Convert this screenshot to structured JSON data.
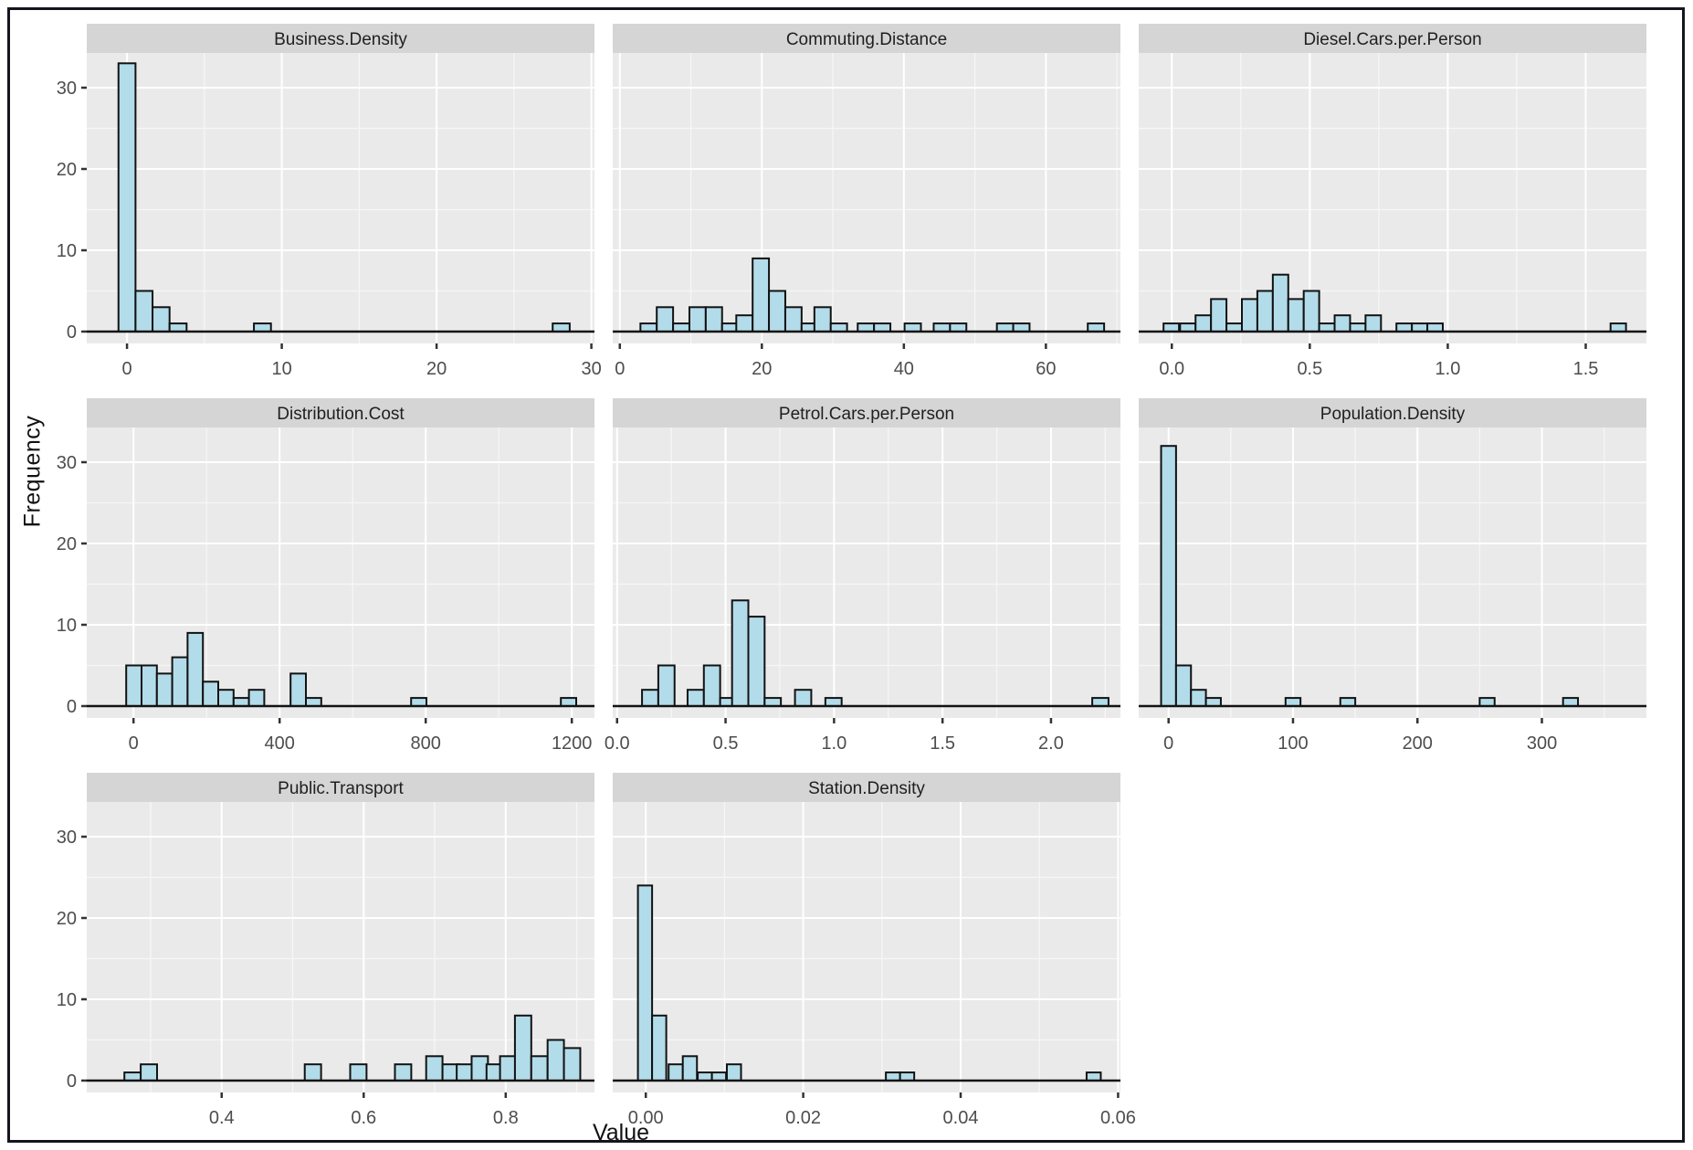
{
  "chart_data": {
    "type": "histogram-facets",
    "xlabel": "Value",
    "ylabel": "Frequency",
    "ylim": [
      0,
      34.3
    ],
    "yticks": [
      0,
      10,
      20,
      30
    ],
    "ytick_labels": [
      "0",
      "10",
      "20",
      "30"
    ],
    "yminor": [
      5,
      15,
      25
    ],
    "grid": "on",
    "colors": {
      "panel_bg": "#EAEAEA",
      "strip_bg": "#D5D5D5",
      "strip_text": "#1F1F1F",
      "grid_major": "#FFFFFF",
      "grid_minor": "#F6F6F6",
      "bar_fill": "#B3DCEA",
      "bar_stroke": "#121212",
      "axis_line": "#121212",
      "tick_mark": "#333333",
      "tick_label": "#4D4D4D",
      "axis_title": "#111111",
      "frame": "#15151F"
    },
    "panels": [
      {
        "title": "Business.Density",
        "row": 0,
        "col": 0,
        "xlim": [
          -2.6,
          30.2
        ],
        "xticks": [
          0,
          10,
          20,
          30
        ],
        "xtick_labels": [
          "0",
          "10",
          "20",
          "30"
        ],
        "xminor": [
          5,
          15,
          25
        ],
        "bin_width": 1.1,
        "bars": [
          [
            -0.55,
            33
          ],
          [
            0.55,
            5
          ],
          [
            1.65,
            3
          ],
          [
            2.75,
            1
          ],
          [
            8.2,
            1
          ],
          [
            27.5,
            1
          ]
        ]
      },
      {
        "title": "Commuting.Distance",
        "row": 0,
        "col": 1,
        "xlim": [
          -1,
          70.5
        ],
        "xticks": [
          0,
          20,
          40,
          60
        ],
        "xtick_labels": [
          "0",
          "20",
          "40",
          "60"
        ],
        "xminor": [
          10,
          30,
          50,
          70
        ],
        "bin_width": 2.3,
        "bars": [
          [
            2.9,
            1
          ],
          [
            5.2,
            3
          ],
          [
            7.5,
            1
          ],
          [
            9.8,
            3
          ],
          [
            12.1,
            3
          ],
          [
            14.4,
            1
          ],
          [
            16.4,
            2
          ],
          [
            18.7,
            9
          ],
          [
            21.0,
            5
          ],
          [
            23.3,
            3
          ],
          [
            25.6,
            1
          ],
          [
            27.4,
            3
          ],
          [
            29.7,
            1
          ],
          [
            33.5,
            1
          ],
          [
            35.8,
            1
          ],
          [
            40.1,
            1
          ],
          [
            44.2,
            1
          ],
          [
            46.5,
            1
          ],
          [
            53.1,
            1
          ],
          [
            55.4,
            1
          ],
          [
            65.9,
            1
          ]
        ]
      },
      {
        "title": "Diesel.Cars.per.Person",
        "row": 0,
        "col": 2,
        "xlim": [
          -0.12,
          1.72
        ],
        "xticks": [
          0,
          0.5,
          1.0,
          1.5
        ],
        "xtick_labels": [
          "0.0",
          "0.5",
          "1.0",
          "1.5"
        ],
        "xminor": [
          0.25,
          0.75,
          1.25
        ],
        "bin_width": 0.056,
        "bars": [
          [
            -0.03,
            1
          ],
          [
            0.03,
            1
          ],
          [
            0.086,
            2
          ],
          [
            0.142,
            4
          ],
          [
            0.198,
            1
          ],
          [
            0.254,
            4
          ],
          [
            0.31,
            5
          ],
          [
            0.366,
            7
          ],
          [
            0.422,
            4
          ],
          [
            0.478,
            5
          ],
          [
            0.534,
            1
          ],
          [
            0.59,
            2
          ],
          [
            0.646,
            1
          ],
          [
            0.702,
            2
          ],
          [
            0.814,
            1
          ],
          [
            0.87,
            1
          ],
          [
            0.926,
            1
          ],
          [
            1.59,
            1
          ]
        ]
      },
      {
        "title": "Distribution.Cost",
        "row": 1,
        "col": 0,
        "xlim": [
          -128,
          1262
        ],
        "xticks": [
          0,
          400,
          800,
          1200
        ],
        "xtick_labels": [
          "0",
          "400",
          "800",
          "1200"
        ],
        "xminor": [
          200,
          600,
          1000
        ],
        "bin_width": 42,
        "bars": [
          [
            -20,
            5
          ],
          [
            22,
            5
          ],
          [
            64,
            4
          ],
          [
            106,
            6
          ],
          [
            148,
            9
          ],
          [
            190,
            3
          ],
          [
            232,
            2
          ],
          [
            274,
            1
          ],
          [
            316,
            2
          ],
          [
            430,
            4
          ],
          [
            472,
            1
          ],
          [
            760,
            1
          ],
          [
            1170,
            1
          ]
        ]
      },
      {
        "title": "Petrol.Cars.per.Person",
        "row": 1,
        "col": 1,
        "xlim": [
          -0.02,
          2.32
        ],
        "xticks": [
          0,
          0.5,
          1.0,
          1.5,
          2.0
        ],
        "xtick_labels": [
          "0.0",
          "0.5",
          "1.0",
          "1.5",
          "2.0"
        ],
        "xminor": [
          0.25,
          0.75,
          1.25,
          1.75,
          2.25
        ],
        "bin_width": 0.075,
        "bars": [
          [
            0.115,
            2
          ],
          [
            0.19,
            5
          ],
          [
            0.325,
            2
          ],
          [
            0.4,
            5
          ],
          [
            0.475,
            1
          ],
          [
            0.53,
            13
          ],
          [
            0.605,
            11
          ],
          [
            0.68,
            1
          ],
          [
            0.82,
            2
          ],
          [
            0.96,
            1
          ],
          [
            2.19,
            1
          ]
        ]
      },
      {
        "title": "Population.Density",
        "row": 1,
        "col": 2,
        "xlim": [
          -24,
          384
        ],
        "xticks": [
          0,
          100,
          200,
          300
        ],
        "xtick_labels": [
          "0",
          "100",
          "200",
          "300"
        ],
        "xminor": [
          50,
          150,
          250,
          350
        ],
        "bin_width": 12,
        "bars": [
          [
            -6,
            32
          ],
          [
            6,
            5
          ],
          [
            18,
            2
          ],
          [
            30,
            1
          ],
          [
            94,
            1
          ],
          [
            138,
            1
          ],
          [
            250,
            1
          ],
          [
            317,
            1
          ]
        ]
      },
      {
        "title": "Public.Transport",
        "row": 2,
        "col": 0,
        "xlim": [
          0.21,
          0.925
        ],
        "xticks": [
          0.4,
          0.6,
          0.8
        ],
        "xtick_labels": [
          "0.4",
          "0.6",
          "0.8"
        ],
        "xminor": [
          0.3,
          0.5,
          0.7,
          0.9
        ],
        "bin_width": 0.023,
        "bars": [
          [
            0.263,
            1
          ],
          [
            0.286,
            2
          ],
          [
            0.517,
            2
          ],
          [
            0.581,
            2
          ],
          [
            0.644,
            2
          ],
          [
            0.688,
            3
          ],
          [
            0.711,
            2
          ],
          [
            0.731,
            2
          ],
          [
            0.752,
            3
          ],
          [
            0.773,
            2
          ],
          [
            0.792,
            3
          ],
          [
            0.813,
            8
          ],
          [
            0.836,
            3
          ],
          [
            0.859,
            5
          ],
          [
            0.882,
            4
          ]
        ]
      },
      {
        "title": "Station.Density",
        "row": 2,
        "col": 1,
        "xlim": [
          -0.0042,
          0.0603
        ],
        "xticks": [
          0,
          0.02,
          0.04,
          0.06
        ],
        "xtick_labels": [
          "0.00",
          "0.02",
          "0.04",
          "0.06"
        ],
        "xminor": [
          0.01,
          0.03,
          0.05
        ],
        "bin_width": 0.0018,
        "bars": [
          [
            -0.001,
            24
          ],
          [
            0.0008,
            8
          ],
          [
            0.0029,
            2
          ],
          [
            0.0047,
            3
          ],
          [
            0.0066,
            1
          ],
          [
            0.0084,
            1
          ],
          [
            0.0103,
            2
          ],
          [
            0.0305,
            1
          ],
          [
            0.0323,
            1
          ],
          [
            0.056,
            1
          ]
        ]
      }
    ]
  }
}
